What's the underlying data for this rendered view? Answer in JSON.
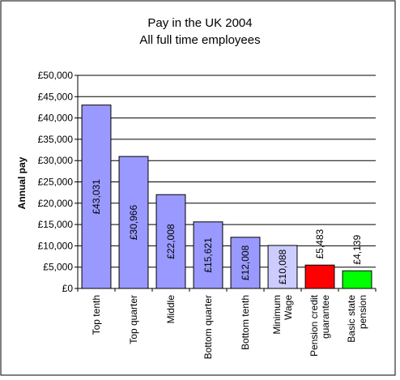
{
  "chart_data": {
    "type": "bar",
    "title": [
      "Pay in the UK 2004",
      "All full time employees"
    ],
    "ylabel": "Annual pay",
    "xlabel": "",
    "ylim": [
      0,
      50000
    ],
    "ytick_step": 5000,
    "yticks": [
      "£0",
      "£5,000",
      "£10,000",
      "£15,000",
      "£20,000",
      "£25,000",
      "£30,000",
      "£35,000",
      "£40,000",
      "£45,000",
      "£50,000"
    ],
    "grid": true,
    "legend": "none",
    "categories": [
      [
        "Top tenth"
      ],
      [
        "Top quarter"
      ],
      [
        "Middle"
      ],
      [
        "Bottom quarter"
      ],
      [
        "Bottom tenth"
      ],
      [
        "Minimum",
        "Wage"
      ],
      [
        "Pension credit",
        "guarantee"
      ],
      [
        "Basic state",
        "pension"
      ]
    ],
    "values": [
      43031,
      30966,
      22008,
      15621,
      12008,
      10088,
      5483,
      4139
    ],
    "data_labels": [
      "£43,031",
      "£30,966",
      "£22,008",
      "£15,621",
      "£12,008",
      "£10,088",
      "£5,483",
      "£4,139"
    ],
    "label_placement": [
      "inside",
      "inside",
      "inside",
      "inside",
      "inside",
      "inside",
      "above",
      "above"
    ],
    "colors": [
      "#9999FF",
      "#9999FF",
      "#9999FF",
      "#9999FF",
      "#9999FF",
      "#CCCCFF",
      "#FF0000",
      "#00FF00"
    ]
  }
}
